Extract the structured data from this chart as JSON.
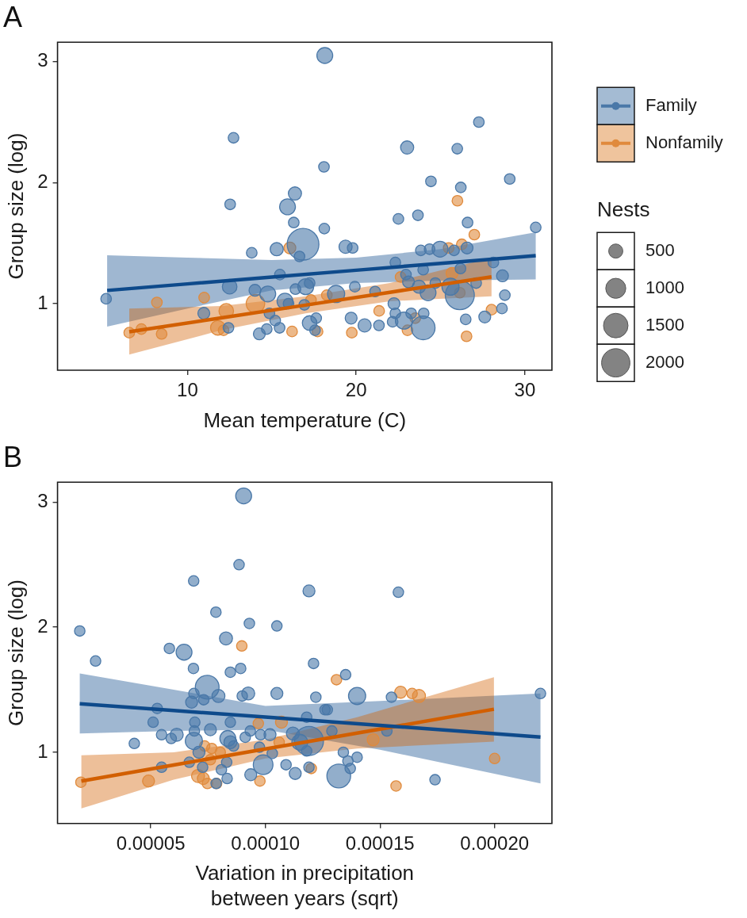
{
  "chart_data": [
    {
      "type": "bubble",
      "title": "A",
      "xlabel": "Mean temperature (C)",
      "ylabel": "Group size (log)",
      "xlim": [
        2.3,
        31.6
      ],
      "ylim": [
        0.45,
        3.16
      ],
      "xticks": [
        10,
        20,
        30
      ],
      "yticks": [
        1,
        2,
        3
      ],
      "grid": false,
      "legend": "right",
      "legend_title": "Nests",
      "size_legend": [
        500,
        1000,
        1500,
        2000
      ],
      "series": [
        {
          "name": "Family",
          "color": "#4a78a8",
          "x": [
            5.18,
            12.73,
            12.53,
            16.37,
            15.93,
            16.3,
            13.81,
            15.29,
            16.85,
            16.64,
            15.48,
            12.5,
            14.0,
            14.76,
            16.4,
            15.78,
            15.99,
            10.97,
            14.86,
            15.2,
            15.46,
            14.7,
            14.26,
            12.43,
            18.14,
            27.27,
            23.02,
            25.99,
            18.09,
            24.43,
            26.2,
            29.1,
            22.5,
            23.66,
            26.6,
            18.11,
            30.64,
            19.37,
            19.79,
            23.83,
            24.35,
            24.97,
            25.8,
            26.57,
            22.32,
            28.13,
            26.18,
            23.97,
            28.67,
            22.95,
            17.01,
            17.24,
            23.1,
            19.92,
            18.81,
            21.12,
            23.72,
            24.26,
            24.69,
            25.59,
            26.14,
            27.11,
            28.81,
            28.64,
            27.62,
            26.49,
            24.0,
            22.24,
            22.32,
            22.83,
            23.26,
            22.16,
            23.97,
            19.7,
            20.5,
            21.35,
            17.24,
            17.63,
            17.56,
            16.93
          ],
          "values": [
            1.04,
            2.37,
            1.82,
            1.91,
            1.8,
            1.67,
            1.42,
            1.45,
            1.49,
            1.39,
            1.24,
            1.14,
            1.11,
            1.08,
            1.12,
            1.02,
            1.0,
            0.92,
            0.92,
            0.86,
            0.8,
            0.79,
            0.75,
            0.8,
            3.05,
            2.5,
            2.29,
            2.28,
            2.13,
            2.01,
            1.96,
            2.03,
            1.7,
            1.73,
            1.67,
            1.62,
            1.63,
            1.47,
            1.46,
            1.44,
            1.45,
            1.45,
            1.44,
            1.46,
            1.34,
            1.34,
            1.29,
            1.28,
            1.23,
            1.24,
            1.14,
            1.17,
            1.18,
            1.14,
            1.08,
            1.1,
            1.14,
            1.09,
            1.17,
            1.14,
            1.07,
            1.17,
            1.07,
            0.96,
            0.89,
            0.87,
            0.92,
            1.0,
            0.92,
            0.86,
            0.92,
            0.85,
            0.8,
            0.88,
            0.82,
            0.82,
            0.84,
            0.88,
            0.78,
            0.99
          ],
          "sizes": [
            280,
            280,
            280,
            430,
            625,
            280,
            280,
            430,
            2500,
            280,
            280,
            530,
            350,
            625,
            280,
            625,
            280,
            350,
            280,
            280,
            280,
            280,
            350,
            280,
            625,
            280,
            430,
            280,
            280,
            280,
            280,
            280,
            280,
            280,
            280,
            280,
            280,
            430,
            280,
            280,
            280,
            625,
            280,
            350,
            280,
            280,
            280,
            280,
            350,
            280,
            625,
            280,
            350,
            280,
            730,
            280,
            430,
            625,
            280,
            730,
            2100,
            280,
            280,
            280,
            350,
            280,
            280,
            350,
            280,
            730,
            280,
            280,
            1400,
            350,
            430,
            280,
            530,
            280,
            280,
            280
          ]
        },
        {
          "name": "Nonfamily",
          "color": "#e08a3c",
          "x": [
            16.07,
            8.19,
            10.99,
            14.03,
            12.3,
            6.55,
            7.27,
            8.47,
            11.8,
            12.14,
            16.2,
            26.0,
            27.0,
            26.26,
            25.48,
            25.68,
            22.63,
            18.26,
            17.32,
            26.14,
            21.36,
            28.02,
            19.74,
            23.04,
            26.54,
            17.71,
            23.5
          ],
          "values": [
            1.46,
            1.01,
            1.05,
            1.0,
            0.94,
            0.76,
            0.79,
            0.75,
            0.8,
            0.78,
            0.77,
            1.85,
            1.57,
            1.49,
            1.46,
            1.25,
            1.22,
            1.07,
            1.03,
            1.09,
            0.94,
            0.95,
            0.76,
            0.78,
            0.73,
            0.77,
            0.88
          ],
          "sizes": [
            350,
            280,
            280,
            850,
            530,
            280,
            280,
            280,
            530,
            280,
            280,
            280,
            280,
            280,
            280,
            350,
            280,
            280,
            280,
            280,
            280,
            280,
            280,
            280,
            280,
            280,
            280
          ]
        },
        {
          "type": "line",
          "color": "#0e4a8b",
          "x": [
            5.24,
            10,
            15,
            20,
            25,
            30.64
          ],
          "values": [
            1.109,
            1.163,
            1.22,
            1.276,
            1.333,
            1.397
          ],
          "lower": [
            0.81,
            0.96,
            1.11,
            1.17,
            1.19,
            1.2
          ],
          "upper": [
            1.4,
            1.38,
            1.36,
            1.38,
            1.45,
            1.59
          ]
        },
        {
          "type": "line",
          "color": "#d25f00",
          "x": [
            6.55,
            12,
            17,
            22,
            28.02
          ],
          "values": [
            0.767,
            0.882,
            0.988,
            1.094,
            1.221
          ],
          "lower": [
            0.58,
            0.78,
            0.92,
            1.02,
            1.06
          ],
          "upper": [
            0.96,
            0.98,
            1.06,
            1.17,
            1.38
          ]
        }
      ]
    },
    {
      "type": "bubble",
      "title": "B",
      "xlabel": "Variation in precipitation\nbetween years (sqrt)",
      "ylabel": "Group size (log)",
      "xlim": [
        9.3e-06,
        0.000225
      ],
      "ylim": [
        0.43,
        3.16
      ],
      "xticks": [
        {
          "value": 5e-05,
          "label": "0.00005"
        },
        {
          "value": 0.0001,
          "label": "0.00010"
        },
        0.00015,
        {
          "value": 0.0002,
          "label": "0.00020"
        }
      ],
      "yticks": [
        1,
        2,
        3
      ],
      "grid": false,
      "series": [
        {
          "color": "#4a78a8",
          "x": [
            9.05e-05,
            8.85e-05,
            6.87e-05,
            7.84e-05,
            9.3e-05,
            0.000105,
            1.9e-05,
            8.28e-05,
            5.81e-05,
            6.45e-05,
            2.59e-05,
            6.86e-05,
            8.92e-05,
            8.47e-05,
            7.46e-05,
            6.88e-05,
            7.95e-05,
            8.99e-05,
            9.25e-05,
            0.000105,
            6.78e-05,
            7.31e-05,
            5.28e-05,
            5.1e-05,
            6.92e-05,
            8.47e-05,
            7.6e-05,
            4.28e-05,
            5.47e-05,
            5.89e-05,
            6.13e-05,
            6.88e-05,
            6.9e-05,
            7.1e-05,
            8.36e-05,
            8.47e-05,
            8.61e-05,
            9.12e-05,
            9.34e-05,
            9.79e-05,
            0.000102,
            9.9e-05,
            0.000103,
            9.74e-05,
            8.31e-05,
            8.08e-05,
            8.33e-05,
            7.85e-05,
            7.26e-05,
            5.47e-05,
            6.68e-05,
            9.36e-05,
            0.000109,
            0.000113,
            0.000112,
            0.000115,
            0.000119,
            0.000119,
            0.000158,
            0.000121,
            0.000135,
            0.00014,
            0.000155,
            0.000122,
            0.000126,
            0.000127,
            0.000118,
            0.000129,
            0.000153,
            0.00022,
            0.000134,
            0.00014,
            0.000136,
            0.000137,
            0.000132,
            0.000174,
            0.000119,
            0.000118
          ],
          "values": [
            3.05,
            2.5,
            2.37,
            2.12,
            2.03,
            2.01,
            1.97,
            1.91,
            1.83,
            1.8,
            1.73,
            1.67,
            1.67,
            1.64,
            1.52,
            1.47,
            1.45,
            1.45,
            1.47,
            1.47,
            1.4,
            1.42,
            1.35,
            1.24,
            1.24,
            1.24,
            1.18,
            1.07,
            1.14,
            1.11,
            1.14,
            1.09,
            1.17,
            1.0,
            1.11,
            1.08,
            1.05,
            1.12,
            1.17,
            1.14,
            1.14,
            0.9,
            0.99,
            1.04,
            0.92,
            0.86,
            0.79,
            0.75,
            0.88,
            0.88,
            0.92,
            0.82,
            0.9,
            0.83,
            1.15,
            1.08,
            2.29,
            1.09,
            2.28,
            1.71,
            1.62,
            1.45,
            1.44,
            1.44,
            1.34,
            1.34,
            1.28,
            1.17,
            1.17,
            1.47,
            1.0,
            0.96,
            0.93,
            0.87,
            0.81,
            0.78,
            0.88,
            1.01
          ],
          "sizes": [
            0.3,
            0.13,
            0.13,
            0.13,
            0.13,
            0.13,
            0.13,
            0.2,
            0.13,
            0.3,
            0.13,
            0.13,
            0.13,
            0.13,
            0.67,
            0.13,
            0.2,
            0.13,
            0.2,
            0.17,
            0.17,
            0.13,
            0.13,
            0.13,
            0.13,
            0.13,
            0.17,
            0.13,
            0.13,
            0.13,
            0.2,
            0.35,
            0.13,
            0.17,
            0.3,
            0.2,
            0.13,
            0.13,
            0.13,
            0.13,
            0.17,
            0.46,
            0.13,
            0.13,
            0.13,
            0.13,
            0.13,
            0.13,
            0.13,
            0.13,
            0.13,
            0.17,
            0.13,
            0.17,
            0.2,
            0.3,
            0.17,
            1,
            0.13,
            0.13,
            0.13,
            0.35,
            0.13,
            0.13,
            0.13,
            0.13,
            0.13,
            0.13,
            0.13,
            0.13,
            0.13,
            0.13,
            0.13,
            0.13,
            0.67,
            0.13,
            0.13,
            0.13
          ]
        },
        {
          "color": "#e08a3c",
          "x": [
            8.97e-05,
            9.69e-05,
            0.000107,
            1.95e-05,
            4.9e-05,
            7.35e-05,
            7.66e-05,
            8.03e-05,
            7.06e-05,
            7.29e-05,
            7.47e-05,
            7.87e-05,
            9.76e-05,
            7.6e-05,
            0.000106,
            0.000131,
            0.000159,
            0.000164,
            0.000167,
            0.000147,
            0.0002,
            0.000157,
            0.00012
          ],
          "values": [
            1.85,
            1.23,
            1.24,
            0.76,
            0.77,
            1.05,
            1.03,
            1.0,
            0.81,
            0.79,
            0.75,
            0.75,
            0.77,
            0.94,
            1.08,
            1.58,
            1.48,
            1.47,
            1.45,
            1.1,
            0.95,
            0.73,
            0.87
          ],
          "sizes": [
            0.13,
            0.13,
            0.17,
            0.13,
            0.17,
            0.13,
            0.13,
            0.13,
            0.2,
            0.17,
            0.13,
            0.13,
            0.13,
            0.13,
            0.13,
            0.13,
            0.17,
            0.13,
            0.2,
            0.17,
            0.13,
            0.13,
            0.13
          ]
        },
        {
          "type": "line",
          "color": "#0e4a8b",
          "x": [
            1.9e-05,
            6e-05,
            0.0001,
            0.00015,
            0.00022
          ],
          "values": [
            1.388,
            1.334,
            1.281,
            1.215,
            1.122
          ],
          "lower": [
            1.15,
            1.17,
            1.18,
            1.02,
            0.75
          ],
          "upper": [
            1.63,
            1.5,
            1.37,
            1.41,
            1.47
          ]
        },
        {
          "type": "line",
          "color": "#d25f00",
          "x": [
            1.97e-05,
            6e-05,
            0.0001,
            0.00014,
            0.0001997
          ],
          "values": [
            0.77,
            0.898,
            1.026,
            1.153,
            1.344
          ],
          "lower": [
            0.55,
            0.78,
            0.95,
            1.03,
            1.085
          ],
          "upper": [
            0.975,
            1.0,
            1.1,
            1.28,
            1.6
          ]
        }
      ]
    }
  ]
}
